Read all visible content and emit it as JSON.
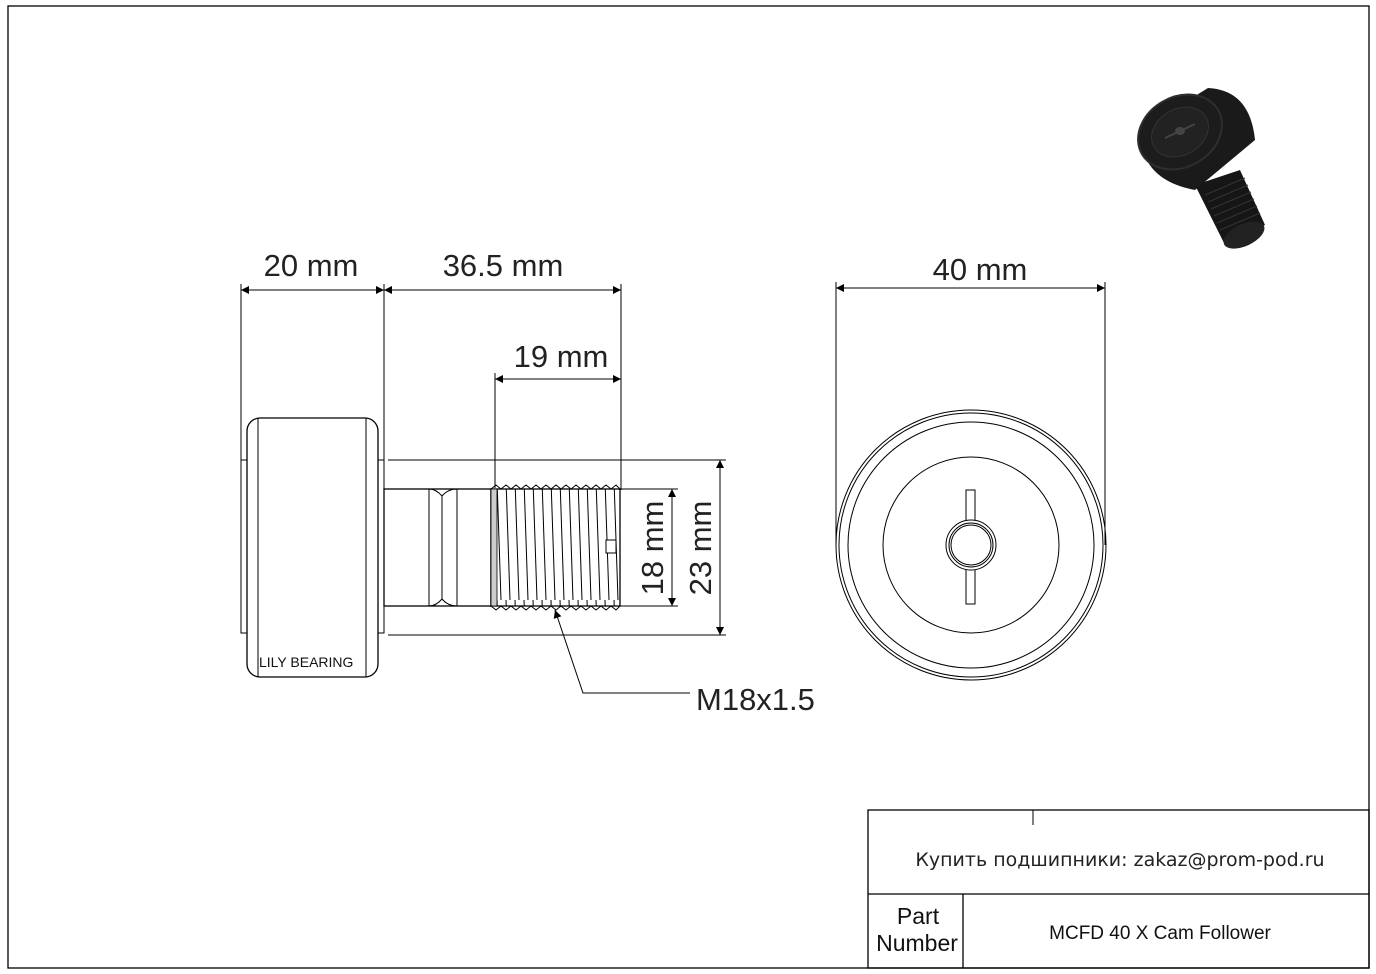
{
  "dimensions": {
    "roller_width": "20 mm",
    "stud_length": "36.5 mm",
    "thread_length": "19 mm",
    "outer_diameter": "40 mm",
    "thread_diameter": "18 mm",
    "flange_diameter": "23 mm",
    "thread_spec": "M18x1.5"
  },
  "brand_mark": "LILY BEARING",
  "title_block": {
    "contact": "Купить подшипники: zakaz@prom-pod.ru",
    "part_number_label_line1": "Part",
    "part_number_label_line2": "Number",
    "part_number": "MCFD 40 X Cam Follower"
  },
  "colors": {
    "line": "#000000",
    "render": "#1a1a1a"
  }
}
